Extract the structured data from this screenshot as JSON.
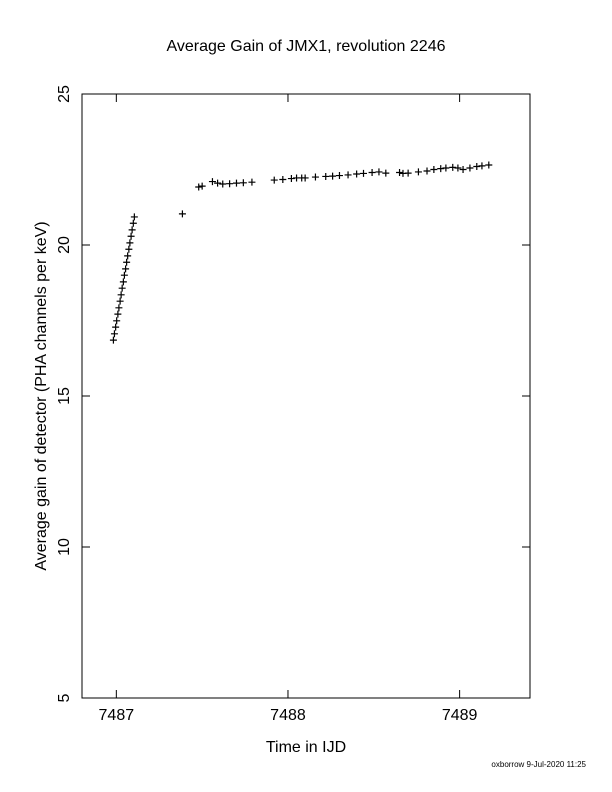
{
  "chart_data": {
    "type": "scatter",
    "title": "Average Gain of JMX1, revolution 2246",
    "x_label": "Time in IJD",
    "y_label": "Average gain of detector (PHA channels per keV)",
    "footer": "oxborrow  9-Jul-2020 11:25",
    "color": "#000000",
    "xlim": [
      7486.8,
      7489.41
    ],
    "ylim": [
      5,
      25
    ],
    "xticks": [
      7487,
      7488,
      7489
    ],
    "yticks": [
      5,
      10,
      15,
      20,
      25
    ],
    "x": [
      7486.983,
      7486.989,
      7486.996,
      7487.002,
      7487.009,
      7487.015,
      7487.022,
      7487.028,
      7487.034,
      7487.041,
      7487.047,
      7487.054,
      7487.06,
      7487.066,
      7487.073,
      7487.079,
      7487.086,
      7487.092,
      7487.099,
      7487.105,
      7487.385,
      7487.48,
      7487.5,
      7487.56,
      7487.59,
      7487.62,
      7487.66,
      7487.7,
      7487.74,
      7487.79,
      7487.92,
      7487.97,
      7488.02,
      7488.05,
      7488.08,
      7488.1,
      7488.16,
      7488.22,
      7488.26,
      7488.3,
      7488.35,
      7488.4,
      7488.44,
      7488.49,
      7488.53,
      7488.57,
      7488.65,
      7488.67,
      7488.7,
      7488.76,
      7488.81,
      7488.85,
      7488.89,
      7488.92,
      7488.96,
      7488.99,
      7489.02,
      7489.06,
      7489.1,
      7489.13,
      7489.17
    ],
    "values": [
      16.85,
      17.06,
      17.28,
      17.49,
      17.71,
      17.92,
      18.14,
      18.35,
      18.57,
      18.78,
      19.0,
      19.21,
      19.43,
      19.64,
      19.86,
      20.07,
      20.29,
      20.5,
      20.72,
      20.93,
      21.03,
      21.92,
      21.95,
      22.1,
      22.05,
      22.02,
      22.03,
      22.05,
      22.06,
      22.08,
      22.15,
      22.17,
      22.2,
      22.22,
      22.22,
      22.22,
      22.25,
      22.27,
      22.28,
      22.3,
      22.32,
      22.35,
      22.37,
      22.4,
      22.42,
      22.38,
      22.4,
      22.37,
      22.38,
      22.42,
      22.45,
      22.5,
      22.53,
      22.55,
      22.57,
      22.55,
      22.5,
      22.55,
      22.6,
      22.62,
      22.65
    ]
  }
}
